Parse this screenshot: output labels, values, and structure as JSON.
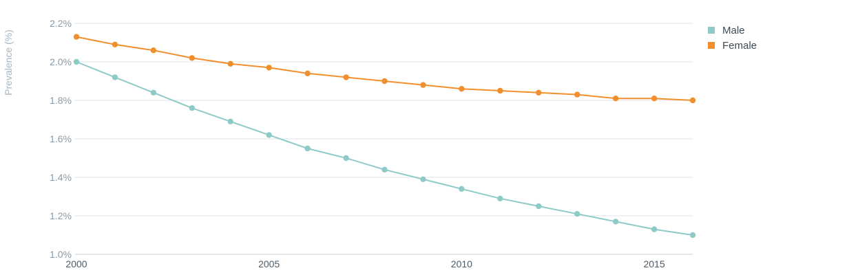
{
  "chart_data": {
    "type": "line",
    "title": "",
    "xlabel": "",
    "ylabel": "Prevalence (%)",
    "x": [
      2000,
      2001,
      2002,
      2003,
      2004,
      2005,
      2006,
      2007,
      2008,
      2009,
      2010,
      2011,
      2012,
      2013,
      2014,
      2015,
      2016
    ],
    "xlim": [
      2000,
      2016
    ],
    "ylim": [
      1.0,
      2.2
    ],
    "x_ticks": [
      2000,
      2005,
      2010,
      2015
    ],
    "x_tick_labels": [
      "2000",
      "2005",
      "2010",
      "2015"
    ],
    "y_ticks": [
      1.0,
      1.2,
      1.4,
      1.6,
      1.8,
      2.0,
      2.2
    ],
    "y_tick_labels": [
      "1.0%",
      "1.2%",
      "1.4%",
      "1.6%",
      "1.8%",
      "2.0%",
      "2.2%"
    ],
    "grid": true,
    "legend_position": "top-right",
    "series": [
      {
        "name": "Male",
        "color": "#8ecbc8",
        "values": [
          2.0,
          1.92,
          1.84,
          1.76,
          1.69,
          1.62,
          1.55,
          1.5,
          1.44,
          1.39,
          1.34,
          1.29,
          1.25,
          1.21,
          1.17,
          1.13,
          1.1
        ]
      },
      {
        "name": "Female",
        "color": "#f28e2b",
        "values": [
          2.13,
          2.09,
          2.06,
          2.02,
          1.99,
          1.97,
          1.94,
          1.92,
          1.9,
          1.88,
          1.86,
          1.85,
          1.84,
          1.83,
          1.81,
          1.81,
          1.8
        ]
      }
    ]
  }
}
